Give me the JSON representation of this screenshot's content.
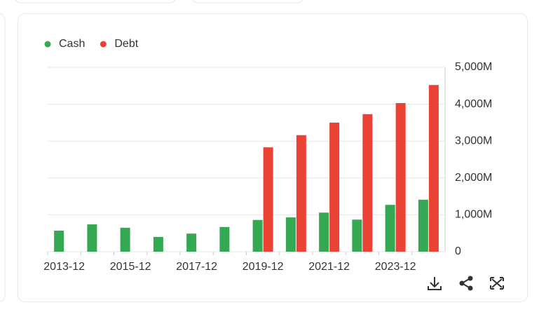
{
  "chart_data": {
    "type": "bar",
    "categories": [
      "2013-12",
      null,
      "2015-12",
      null,
      "2017-12",
      null,
      "2019-12",
      null,
      "2021-12",
      null,
      "2023-12",
      null
    ],
    "series": [
      {
        "name": "Cash",
        "color": "#34a853",
        "values": [
          570,
          740,
          650,
          400,
          490,
          670,
          860,
          930,
          1060,
          870,
          1270,
          1410
        ]
      },
      {
        "name": "Debt",
        "color": "#ea4335",
        "values": [
          null,
          null,
          null,
          null,
          null,
          null,
          2830,
          3160,
          3500,
          3730,
          4030,
          4520
        ]
      }
    ],
    "ylim": [
      0,
      5000
    ],
    "yticks": [
      0,
      {
        "value": 1000,
        "label": "1,000M"
      },
      {
        "value": 2000,
        "label": "2,000M"
      },
      {
        "value": 3000,
        "label": "3,000M"
      },
      {
        "value": 4000,
        "label": "4,000M"
      },
      {
        "value": 5000,
        "label": "5,000M"
      }
    ],
    "grid": true,
    "legend": "top-left"
  }
}
